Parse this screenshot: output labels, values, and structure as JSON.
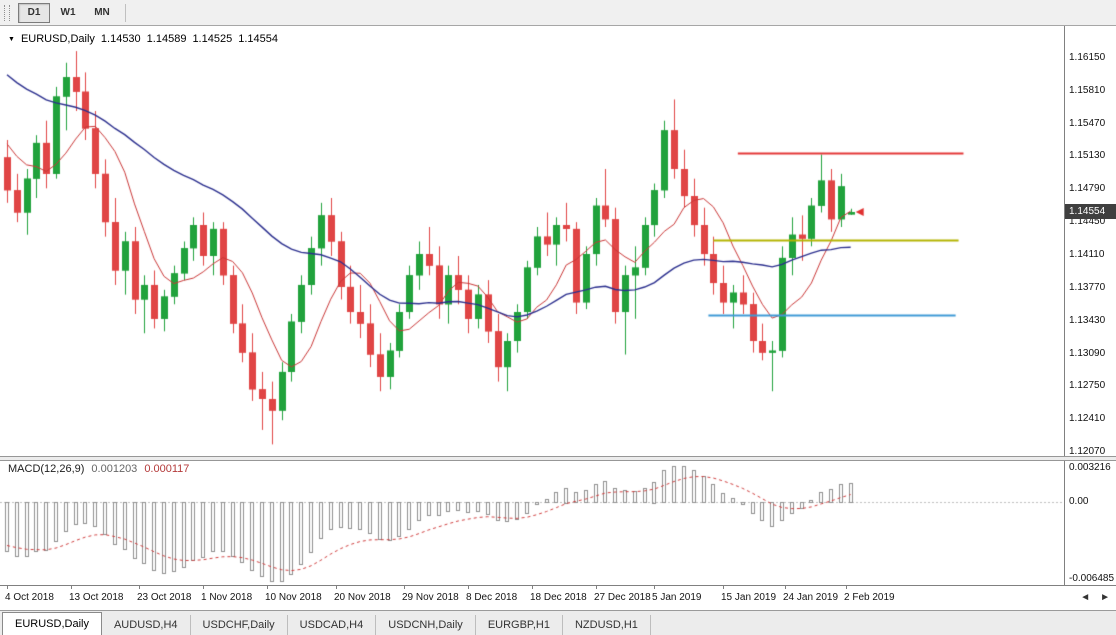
{
  "toolbar": {
    "buttons": [
      {
        "label": "D1",
        "active": true
      },
      {
        "label": "W1",
        "active": false
      },
      {
        "label": "MN",
        "active": false
      }
    ]
  },
  "nav": {
    "left_arrow": "◄",
    "right_arrow": "►"
  },
  "tabs": [
    {
      "label": "EURUSD,Daily",
      "active": true
    },
    {
      "label": "AUDUSD,H4",
      "active": false
    },
    {
      "label": "USDCHF,Daily",
      "active": false
    },
    {
      "label": "USDCAD,H4",
      "active": false
    },
    {
      "label": "USDCNH,Daily",
      "active": false
    },
    {
      "label": "EURGBP,H1",
      "active": false
    },
    {
      "label": "NZDUSD,H1",
      "active": false
    }
  ],
  "chart_data": {
    "type": "candlestick",
    "symbol": "EURUSD",
    "timeframe": "Daily",
    "title": {
      "symbol": "EURUSD,Daily",
      "open": "1.14530",
      "high": "1.14589",
      "low": "1.14525",
      "close": "1.14554"
    },
    "price_axis": {
      "max": 1.1648,
      "min": 1.1203,
      "ticks": [
        "1.16150",
        "1.15810",
        "1.15470",
        "1.15130",
        "1.14790",
        "1.14450",
        "1.14110",
        "1.13770",
        "1.13430",
        "1.13090",
        "1.12750",
        "1.12410",
        "1.12070"
      ],
      "current_price": 1.14554,
      "current_price_label": "1.14554"
    },
    "candle_colors": {
      "up": "#21a23c",
      "down": "#e04545"
    },
    "candles_ohlc": [
      [
        1.1512,
        1.153,
        1.1465,
        1.1478
      ],
      [
        1.1478,
        1.1495,
        1.1445,
        1.1455
      ],
      [
        1.1455,
        1.15,
        1.1432,
        1.149
      ],
      [
        1.149,
        1.1535,
        1.147,
        1.1527
      ],
      [
        1.1527,
        1.155,
        1.148,
        1.1495
      ],
      [
        1.1495,
        1.1585,
        1.149,
        1.1575
      ],
      [
        1.1575,
        1.161,
        1.154,
        1.1595
      ],
      [
        1.1595,
        1.1622,
        1.156,
        1.158
      ],
      [
        1.158,
        1.16,
        1.153,
        1.1542
      ],
      [
        1.1542,
        1.156,
        1.148,
        1.1495
      ],
      [
        1.1495,
        1.151,
        1.143,
        1.1445
      ],
      [
        1.1445,
        1.147,
        1.138,
        1.1395
      ],
      [
        1.1395,
        1.1435,
        1.137,
        1.1425
      ],
      [
        1.1425,
        1.144,
        1.135,
        1.1365
      ],
      [
        1.1365,
        1.139,
        1.133,
        1.138
      ],
      [
        1.138,
        1.1395,
        1.1335,
        1.1345
      ],
      [
        1.1345,
        1.1375,
        1.1332,
        1.1368
      ],
      [
        1.1368,
        1.14,
        1.136,
        1.1392
      ],
      [
        1.1392,
        1.1425,
        1.1385,
        1.1418
      ],
      [
        1.1418,
        1.145,
        1.1405,
        1.1442
      ],
      [
        1.1442,
        1.1455,
        1.14,
        1.141
      ],
      [
        1.141,
        1.1445,
        1.139,
        1.1438
      ],
      [
        1.1438,
        1.1445,
        1.138,
        1.139
      ],
      [
        1.139,
        1.14,
        1.133,
        1.134
      ],
      [
        1.134,
        1.136,
        1.13,
        1.131
      ],
      [
        1.131,
        1.133,
        1.126,
        1.1272
      ],
      [
        1.1272,
        1.129,
        1.123,
        1.1262
      ],
      [
        1.1262,
        1.128,
        1.1215,
        1.125
      ],
      [
        1.125,
        1.13,
        1.124,
        1.129
      ],
      [
        1.129,
        1.135,
        1.128,
        1.1342
      ],
      [
        1.1342,
        1.139,
        1.133,
        1.138
      ],
      [
        1.138,
        1.143,
        1.137,
        1.1418
      ],
      [
        1.1418,
        1.1465,
        1.14,
        1.1452
      ],
      [
        1.1452,
        1.147,
        1.141,
        1.1425
      ],
      [
        1.1425,
        1.1435,
        1.1365,
        1.1378
      ],
      [
        1.1378,
        1.14,
        1.134,
        1.1352
      ],
      [
        1.1352,
        1.138,
        1.1325,
        1.134
      ],
      [
        1.134,
        1.136,
        1.1295,
        1.1308
      ],
      [
        1.1308,
        1.133,
        1.127,
        1.1285
      ],
      [
        1.1285,
        1.132,
        1.1272,
        1.1312
      ],
      [
        1.1312,
        1.136,
        1.1305,
        1.1352
      ],
      [
        1.1352,
        1.14,
        1.1345,
        1.139
      ],
      [
        1.139,
        1.1425,
        1.1375,
        1.1412
      ],
      [
        1.1412,
        1.144,
        1.139,
        1.14
      ],
      [
        1.14,
        1.142,
        1.1345,
        1.136
      ],
      [
        1.136,
        1.14,
        1.134,
        1.139
      ],
      [
        1.139,
        1.141,
        1.136,
        1.1375
      ],
      [
        1.1375,
        1.139,
        1.133,
        1.1345
      ],
      [
        1.1345,
        1.138,
        1.1335,
        1.137
      ],
      [
        1.137,
        1.1385,
        1.132,
        1.1332
      ],
      [
        1.1332,
        1.135,
        1.128,
        1.1295
      ],
      [
        1.1295,
        1.133,
        1.127,
        1.1322
      ],
      [
        1.1322,
        1.136,
        1.131,
        1.1352
      ],
      [
        1.1352,
        1.1405,
        1.1345,
        1.1398
      ],
      [
        1.1398,
        1.144,
        1.139,
        1.143
      ],
      [
        1.143,
        1.1455,
        1.141,
        1.1422
      ],
      [
        1.1422,
        1.145,
        1.14,
        1.1442
      ],
      [
        1.1442,
        1.1465,
        1.1425,
        1.1438
      ],
      [
        1.1438,
        1.1445,
        1.135,
        1.1362
      ],
      [
        1.1362,
        1.142,
        1.1355,
        1.1412
      ],
      [
        1.1412,
        1.147,
        1.14,
        1.1462
      ],
      [
        1.1462,
        1.15,
        1.144,
        1.1448
      ],
      [
        1.1448,
        1.146,
        1.134,
        1.1352
      ],
      [
        1.1352,
        1.14,
        1.1308,
        1.139
      ],
      [
        1.139,
        1.142,
        1.1345,
        1.1398
      ],
      [
        1.1398,
        1.145,
        1.139,
        1.1442
      ],
      [
        1.1442,
        1.1485,
        1.143,
        1.1478
      ],
      [
        1.1478,
        1.155,
        1.147,
        1.154
      ],
      [
        1.154,
        1.1572,
        1.149,
        1.15
      ],
      [
        1.15,
        1.152,
        1.146,
        1.1472
      ],
      [
        1.1472,
        1.149,
        1.143,
        1.1442
      ],
      [
        1.1442,
        1.146,
        1.14,
        1.1412
      ],
      [
        1.1412,
        1.143,
        1.137,
        1.1382
      ],
      [
        1.1382,
        1.14,
        1.135,
        1.1362
      ],
      [
        1.1362,
        1.138,
        1.1335,
        1.1372
      ],
      [
        1.1372,
        1.139,
        1.135,
        1.136
      ],
      [
        1.136,
        1.1372,
        1.131,
        1.1322
      ],
      [
        1.1322,
        1.134,
        1.1302,
        1.131
      ],
      [
        1.131,
        1.1322,
        1.127,
        1.1312
      ],
      [
        1.1312,
        1.142,
        1.1305,
        1.1408
      ],
      [
        1.1408,
        1.145,
        1.139,
        1.1432
      ],
      [
        1.1432,
        1.1452,
        1.1405,
        1.1428
      ],
      [
        1.1428,
        1.147,
        1.142,
        1.1462
      ],
      [
        1.1462,
        1.1515,
        1.1455,
        1.1488
      ],
      [
        1.1488,
        1.15,
        1.1435,
        1.1448
      ],
      [
        1.1448,
        1.1495,
        1.144,
        1.1482
      ],
      [
        1.1453,
        1.14589,
        1.14525,
        1.14554
      ]
    ],
    "ma_seed_closes": [
      1.1705,
      1.1698,
      1.169,
      1.1682,
      1.1675,
      1.1668,
      1.166,
      1.1652,
      1.1645,
      1.1638,
      1.163,
      1.1622,
      1.1615,
      1.1608,
      1.16,
      1.1592,
      1.1585,
      1.1578,
      1.157,
      1.1575,
      1.158,
      1.157,
      1.156,
      1.155,
      1.1545,
      1.1552,
      1.154,
      1.153,
      1.1522,
      1.1515
    ],
    "moving_averages": [
      {
        "name": "fast-ma",
        "period": 7,
        "color": "#c93636",
        "width": 1
      },
      {
        "name": "slow-ma",
        "period": 30,
        "color": "#2b2f8e",
        "width": 1.4
      }
    ],
    "trend_lines": [
      {
        "name": "resistance-line",
        "color": "#e43737",
        "price": 1.1517,
        "from_index": 74.5,
        "to_index": 97.5,
        "width": 2
      },
      {
        "name": "mid-line",
        "color": "#b4b400",
        "price": 1.1427,
        "from_index": 72.0,
        "to_index": 97.0,
        "width": 2
      },
      {
        "name": "support-line",
        "color": "#3e9ad6",
        "price": 1.1349,
        "from_index": 71.5,
        "to_index": 96.7,
        "width": 2
      }
    ],
    "last_price_marker_color": "#e03030",
    "date_axis": [
      {
        "label": "4 Oct 2018",
        "i": 0
      },
      {
        "label": "13 Oct 2018",
        "i": 6.5
      },
      {
        "label": "23 Oct 2018",
        "i": 13.5
      },
      {
        "label": "1 Nov 2018",
        "i": 20
      },
      {
        "label": "10 Nov 2018",
        "i": 26.5
      },
      {
        "label": "20 Nov 2018",
        "i": 33.5
      },
      {
        "label": "29 Nov 2018",
        "i": 40.5
      },
      {
        "label": "8 Dec 2018",
        "i": 47
      },
      {
        "label": "18 Dec 2018",
        "i": 53.5
      },
      {
        "label": "27 Dec 2018",
        "i": 60
      },
      {
        "label": "5 Jan 2019",
        "i": 66
      },
      {
        "label": "15 Jan 2019",
        "i": 73
      },
      {
        "label": "24 Jan 2019",
        "i": 79.3
      },
      {
        "label": "2 Feb 2019",
        "i": 85.5
      }
    ],
    "macd": {
      "label": "MACD(12,26,9)",
      "value_label": "0.001203",
      "signal_label": "0.000117",
      "fast": 12,
      "slow": 26,
      "signal": 9,
      "axis_max": 0.003216,
      "axis_min": -0.006485,
      "axis_ticks": [
        {
          "label": "0.003216",
          "v": 0.003216
        },
        {
          "label": "0.00",
          "v": 0
        },
        {
          "label": "-0.006485",
          "v": -0.006485
        }
      ],
      "histogram_color": "#8f8f8f",
      "signal_color": "#cf3d3d"
    }
  }
}
